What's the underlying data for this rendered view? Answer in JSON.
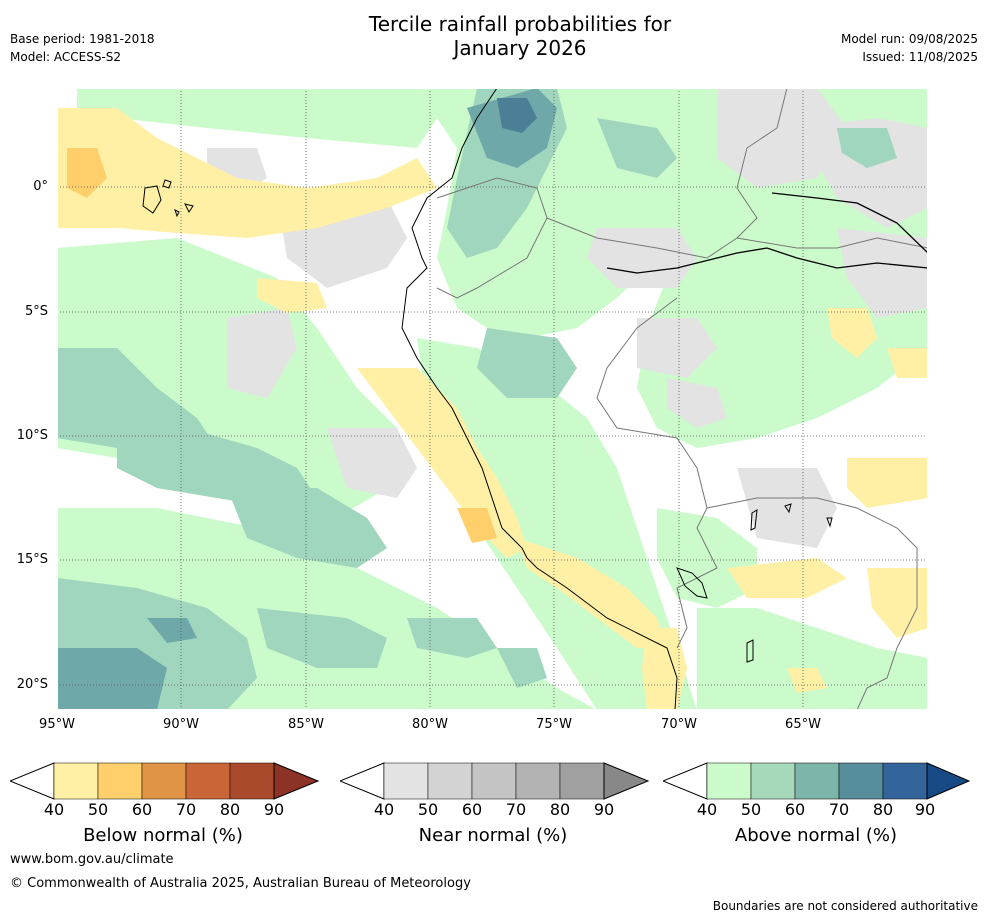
{
  "header": {
    "title_line1": "Tercile rainfall probabilities for",
    "title_line2": "January 2026",
    "base_period": "Base period: 1981-2018",
    "model": "Model: ACCESS-S2",
    "model_run": "Model run: 09/08/2025",
    "issued": "Issued: 11/08/2025"
  },
  "map": {
    "lat_labels": [
      "0°",
      "5°S",
      "10°S",
      "15°S",
      "20°S"
    ],
    "lon_labels": [
      "95°W",
      "90°W",
      "85°W",
      "80°W",
      "75°W",
      "70°W",
      "65°W"
    ],
    "category_colors": {
      "below_normal_40_50": "#fff0a6",
      "near_normal_40_50": "#e3e3e3",
      "above_normal_40_50": "#cbfbcb",
      "above_normal_50_60": "#9fd6bd",
      "above_normal_60_70": "#6fa8a8",
      "above_normal_70_80": "#4a7f96"
    }
  },
  "legends": [
    {
      "id": "below",
      "title": "Below normal (%)",
      "ticks": [
        "40",
        "50",
        "60",
        "70",
        "80",
        "90"
      ],
      "colors": [
        "#fff0a6",
        "#fecf6a",
        "#e09446",
        "#c96637",
        "#aa4a2c",
        "#8c3226"
      ]
    },
    {
      "id": "near",
      "title": "Near normal (%)",
      "ticks": [
        "40",
        "50",
        "60",
        "70",
        "80",
        "90"
      ],
      "colors": [
        "#e3e3e3",
        "#d3d3d3",
        "#c4c4c4",
        "#b3b3b3",
        "#a0a0a0",
        "#888888"
      ]
    },
    {
      "id": "above",
      "title": "Above normal (%)",
      "ticks": [
        "40",
        "50",
        "60",
        "70",
        "80",
        "90"
      ],
      "colors": [
        "#cbfbcb",
        "#a6d8ba",
        "#7eb5ab",
        "#578e9c",
        "#33659a",
        "#174a85"
      ]
    }
  ],
  "footer": {
    "url": "www.bom.gov.au/climate",
    "copyright": "© Commonwealth of Australia 2025, Australian Bureau of Meteorology",
    "disclaimer": "Boundaries are not considered authoritative"
  }
}
